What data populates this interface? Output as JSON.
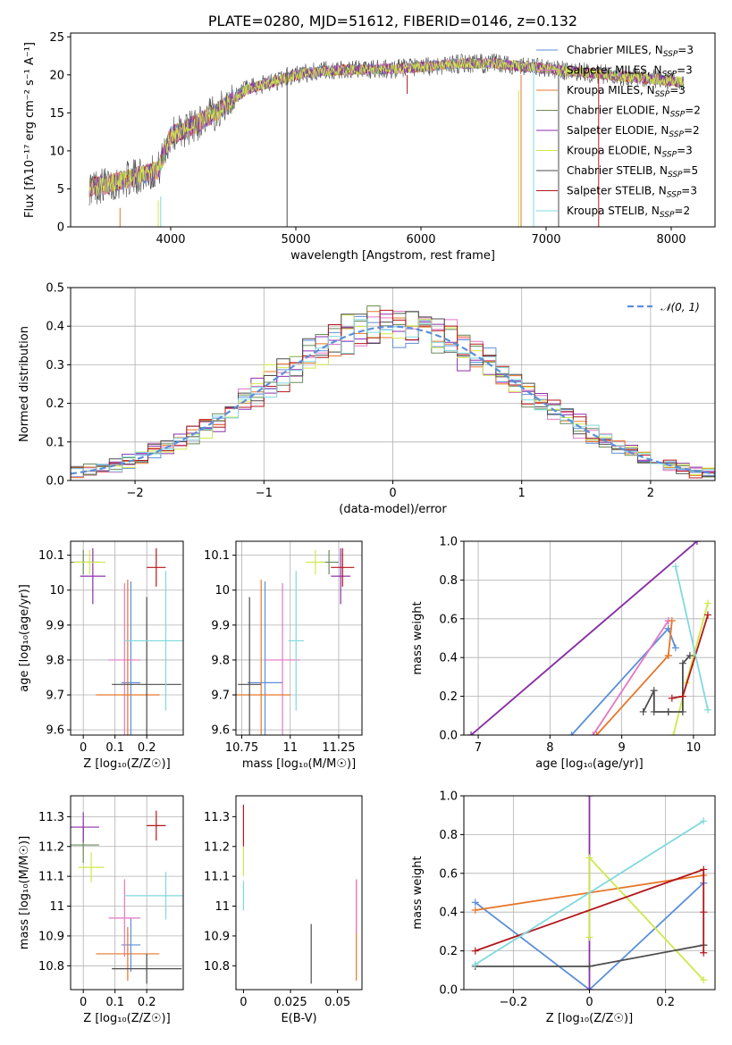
{
  "colors": {
    "chabrier_miles": "#5b8fd9",
    "salpeter_miles": "#e377c2",
    "kroupa_miles": "#e6772b",
    "chabrier_elodie": "#6a8a5a",
    "salpeter_elodie": "#8e2fae",
    "kroupa_elodie": "#cfe84a",
    "chabrier_stelib": "#4d4d4d",
    "salpeter_stelib": "#b3161c",
    "kroupa_stelib": "#7fd9dc",
    "normal": "#5b8fd9"
  },
  "chart_data": [
    {
      "id": "spectrum",
      "type": "line",
      "title": "PLATE=0280, MJD=51612, FIBERID=0146, z=0.132",
      "xlabel": "wavelength [Angstrom, rest frame]",
      "ylabel": "Flux [fλ10⁻¹⁷ erg cm⁻² s⁻¹ A⁻¹]",
      "xlim": [
        3200,
        8350
      ],
      "ylim": [
        0,
        25.5
      ],
      "xticks": [
        4000,
        5000,
        6000,
        7000,
        8000
      ],
      "yticks": [
        0,
        5,
        10,
        15,
        20,
        25
      ],
      "legend_position": "right",
      "legend": [
        {
          "label": "Chabrier MILES, N",
          "sub": "SSP",
          "suffix": "=3",
          "color": "chabrier_miles"
        },
        {
          "label": "Salpeter MILES, N",
          "sub": "SSP",
          "suffix": "=3",
          "color": "salpeter_miles"
        },
        {
          "label": "Kroupa MILES, N",
          "sub": "SSP",
          "suffix": "=3",
          "color": "kroupa_miles"
        },
        {
          "label": "Chabrier ELODIE, N",
          "sub": "SSP",
          "suffix": "=2",
          "color": "chabrier_elodie"
        },
        {
          "label": "Salpeter ELODIE, N",
          "sub": "SSP",
          "suffix": "=2",
          "color": "salpeter_elodie"
        },
        {
          "label": "Kroupa ELODIE, N",
          "sub": "SSP",
          "suffix": "=3",
          "color": "kroupa_elodie"
        },
        {
          "label": "Chabrier STELIB, N",
          "sub": "SSP",
          "suffix": "=5",
          "color": "chabrier_stelib"
        },
        {
          "label": "Salpeter STELIB, N",
          "sub": "SSP",
          "suffix": "=3",
          "color": "salpeter_stelib"
        },
        {
          "label": "Kroupa STELIB, N",
          "sub": "SSP",
          "suffix": "=2",
          "color": "kroupa_stelib"
        }
      ],
      "continuum": {
        "x": [
          3350,
          3500,
          3700,
          3900,
          4000,
          4200,
          4400,
          4600,
          4800,
          5000,
          5200,
          5500,
          5800,
          6000,
          6300,
          6600,
          7000,
          7500,
          8000,
          8100
        ],
        "y": [
          5.2,
          5.6,
          6.5,
          7.5,
          12.0,
          13.5,
          15.5,
          18.0,
          19.0,
          20.0,
          20.5,
          20.7,
          20.8,
          21.0,
          21.5,
          21.5,
          20.8,
          20.0,
          19.2,
          19.0
        ]
      },
      "spikes": [
        {
          "x": 3900,
          "ymin": 0,
          "ymax": 3.5,
          "color": "kroupa_elodie"
        },
        {
          "x": 3920,
          "ymin": 0,
          "ymax": 4.0,
          "color": "kroupa_stelib"
        },
        {
          "x": 3595,
          "ymin": 0,
          "ymax": 2.5,
          "color": "kroupa_miles"
        },
        {
          "x": 4930,
          "ymin": 0,
          "ymax": 21.0,
          "color": "chabrier_stelib"
        },
        {
          "x": 5890,
          "ymin": 17.5,
          "ymax": 20.0,
          "color": "salpeter_stelib"
        },
        {
          "x": 6780,
          "ymin": 0,
          "ymax": 18.0,
          "color": "kroupa_elodie"
        },
        {
          "x": 6800,
          "ymin": 0,
          "ymax": 20.0,
          "color": "kroupa_miles"
        },
        {
          "x": 6900,
          "ymin": 0,
          "ymax": 22.0,
          "color": "kroupa_stelib"
        },
        {
          "x": 7100,
          "ymin": 0,
          "ymax": 20.0,
          "color": "chabrier_stelib"
        },
        {
          "x": 7420,
          "ymin": 0,
          "ymax": 21.0,
          "color": "salpeter_stelib"
        }
      ]
    },
    {
      "id": "residuals",
      "type": "histogram",
      "xlabel": "(data-model)/error",
      "ylabel": "Normed distribution",
      "xlim": [
        -2.5,
        2.5
      ],
      "ylim": [
        0,
        0.5
      ],
      "xticks": [
        -2,
        -1,
        0,
        1,
        2
      ],
      "yticks": [
        0.0,
        0.1,
        0.2,
        0.3,
        0.4,
        0.5
      ],
      "grid": true,
      "legend_position": "top-right",
      "legend_label": "𝒩(0, 1)",
      "bin_width": 0.1
    },
    {
      "id": "age_vs_z",
      "type": "errorbar",
      "xlabel": "Z [log₁₀(Z/Z☉)]",
      "ylabel": "age  [log₁₀(age/yr)]",
      "xlim": [
        -0.04,
        0.315
      ],
      "ylim": [
        9.585,
        10.14
      ],
      "xticks": [
        0.0,
        0.1,
        0.2
      ],
      "yticks": [
        9.6,
        9.7,
        9.8,
        9.9,
        10.0,
        10.1
      ],
      "grid": true,
      "points": [
        {
          "x": 0.15,
          "xerr": 0.03,
          "y": 9.735,
          "yerr": 0.29,
          "color": "chabrier_miles"
        },
        {
          "x": 0.13,
          "xerr": 0.05,
          "y": 9.8,
          "yerr": 0.22,
          "color": "salpeter_miles"
        },
        {
          "x": 0.14,
          "xerr": 0.1,
          "y": 9.7,
          "yerr": 0.33,
          "color": "kroupa_miles"
        },
        {
          "x": 0.0,
          "xerr": 0.05,
          "y": 10.08,
          "yerr": 0.035,
          "color": "chabrier_elodie"
        },
        {
          "x": 0.03,
          "xerr": 0.04,
          "y": 10.04,
          "yerr": 0.08,
          "color": "salpeter_elodie"
        },
        {
          "x": 0.02,
          "xerr": 0.05,
          "y": 10.08,
          "yerr": 0.035,
          "color": "kroupa_elodie"
        },
        {
          "x": 0.2,
          "xerr": 0.11,
          "y": 9.73,
          "yerr": 0.25,
          "color": "chabrier_stelib"
        },
        {
          "x": 0.23,
          "xerr": 0.03,
          "y": 10.065,
          "yerr": 0.055,
          "color": "salpeter_stelib"
        },
        {
          "x": 0.26,
          "xerr": 0.13,
          "y": 9.855,
          "yerr": 0.2,
          "color": "kroupa_stelib"
        }
      ]
    },
    {
      "id": "age_vs_mass",
      "type": "errorbar",
      "xlabel": "mass [log₁₀(M/M☉)]",
      "ylabel": "",
      "xlim": [
        10.72,
        11.37
      ],
      "ylim": [
        9.585,
        10.14
      ],
      "xticks": [
        10.75,
        11.0,
        11.25
      ],
      "yticks": [
        9.6,
        9.7,
        9.8,
        9.9,
        10.0,
        10.1
      ],
      "grid": true,
      "points": [
        {
          "x": 10.87,
          "xerr": 0.09,
          "y": 9.735,
          "yerr": 0.29,
          "color": "chabrier_miles"
        },
        {
          "x": 10.96,
          "xerr": 0.09,
          "y": 9.8,
          "yerr": 0.22,
          "color": "salpeter_miles"
        },
        {
          "x": 10.85,
          "xerr": 0.15,
          "y": 9.7,
          "yerr": 0.33,
          "color": "kroupa_miles"
        },
        {
          "x": 11.2,
          "xerr": 0.05,
          "y": 10.08,
          "yerr": 0.035,
          "color": "chabrier_elodie"
        },
        {
          "x": 11.26,
          "xerr": 0.05,
          "y": 10.04,
          "yerr": 0.08,
          "color": "salpeter_elodie"
        },
        {
          "x": 11.13,
          "xerr": 0.05,
          "y": 10.08,
          "yerr": 0.035,
          "color": "kroupa_elodie"
        },
        {
          "x": 10.79,
          "xerr": 0.06,
          "y": 9.73,
          "yerr": 0.25,
          "color": "chabrier_stelib"
        },
        {
          "x": 11.27,
          "xerr": 0.06,
          "y": 10.065,
          "yerr": 0.055,
          "color": "salpeter_stelib"
        },
        {
          "x": 11.03,
          "xerr": 0.04,
          "y": 9.855,
          "yerr": 0.2,
          "color": "kroupa_stelib"
        }
      ]
    },
    {
      "id": "mass_weight_vs_age",
      "type": "line",
      "xlabel": "age  [log₁₀(age/yr)]",
      "ylabel": "mass weight",
      "xlim": [
        6.8,
        10.3
      ],
      "ylim": [
        0,
        1
      ],
      "xticks": [
        7,
        8,
        9,
        10
      ],
      "yticks": [
        0.0,
        0.2,
        0.4,
        0.6,
        0.8,
        1.0
      ],
      "grid": true,
      "series": [
        {
          "color": "chabrier_elodie",
          "x": [
            6.9,
            10.05
          ],
          "y": [
            0.0,
            1.0
          ]
        },
        {
          "color": "salpeter_elodie",
          "x": [
            6.9,
            10.05
          ],
          "y": [
            0.0,
            1.0
          ]
        },
        {
          "color": "chabrier_miles",
          "x": [
            8.3,
            9.65,
            9.65,
            9.75
          ],
          "y": [
            0.0,
            0.55,
            0.55,
            0.45
          ]
        },
        {
          "color": "salpeter_miles",
          "x": [
            8.6,
            9.65,
            9.65
          ],
          "y": [
            0.0,
            0.59,
            0.59
          ]
        },
        {
          "color": "kroupa_miles",
          "x": [
            8.65,
            9.65,
            9.65,
            9.7
          ],
          "y": [
            0.0,
            0.41,
            0.41,
            0.59
          ]
        },
        {
          "color": "kroupa_elodie",
          "x": [
            9.72,
            9.9,
            10.2
          ],
          "y": [
            0.0,
            0.27,
            0.68
          ]
        },
        {
          "color": "chabrier_stelib",
          "x": [
            9.3,
            9.45,
            9.45,
            9.65,
            9.65,
            9.85,
            9.85,
            9.95
          ],
          "y": [
            0.12,
            0.23,
            0.12,
            0.12,
            0.12,
            0.12,
            0.37,
            0.41
          ]
        },
        {
          "color": "salpeter_stelib",
          "x": [
            9.7,
            9.85,
            10.2
          ],
          "y": [
            0.19,
            0.2,
            0.62
          ]
        },
        {
          "color": "kroupa_stelib",
          "x": [
            9.75,
            10.2
          ],
          "y": [
            0.87,
            0.13
          ]
        }
      ]
    },
    {
      "id": "mass_vs_z",
      "type": "errorbar",
      "xlabel": "Z [log₁₀(Z/Z☉)]",
      "ylabel": "mass [log₁₀(M/M☉)]",
      "xlim": [
        -0.04,
        0.315
      ],
      "ylim": [
        10.72,
        11.37
      ],
      "xticks": [
        0.0,
        0.1,
        0.2
      ],
      "yticks": [
        10.8,
        10.9,
        11.0,
        11.1,
        11.2,
        11.3
      ],
      "grid": true,
      "points": [
        {
          "x": 0.15,
          "xerr": 0.03,
          "y": 10.87,
          "yerr": 0.09,
          "color": "chabrier_miles"
        },
        {
          "x": 0.13,
          "xerr": 0.05,
          "y": 10.96,
          "yerr": 0.13,
          "color": "salpeter_miles"
        },
        {
          "x": 0.14,
          "xerr": 0.1,
          "y": 10.84,
          "yerr": 0.09,
          "color": "kroupa_miles"
        },
        {
          "x": 0.0,
          "xerr": 0.05,
          "y": 11.205,
          "yerr": 0.06,
          "color": "chabrier_elodie"
        },
        {
          "x": 0.0,
          "xerr": 0.05,
          "y": 11.265,
          "yerr": 0.05,
          "color": "salpeter_elodie"
        },
        {
          "x": 0.025,
          "xerr": 0.04,
          "y": 11.13,
          "yerr": 0.05,
          "color": "kroupa_elodie"
        },
        {
          "x": 0.2,
          "xerr": 0.11,
          "y": 10.79,
          "yerr": 0.05,
          "color": "chabrier_stelib"
        },
        {
          "x": 0.23,
          "xerr": 0.03,
          "y": 11.27,
          "yerr": 0.05,
          "color": "salpeter_stelib"
        },
        {
          "x": 0.26,
          "xerr": 0.13,
          "y": 11.035,
          "yerr": 0.08,
          "color": "kroupa_stelib"
        }
      ]
    },
    {
      "id": "mass_vs_ebv",
      "type": "errorbar",
      "xlabel": "E(B-V)",
      "ylabel": "",
      "xlim": [
        -0.004,
        0.063
      ],
      "ylim": [
        10.72,
        11.37
      ],
      "xticks": [
        0.0,
        0.025,
        0.05
      ],
      "yticks": [
        10.8,
        10.9,
        11.0,
        11.1,
        11.2,
        11.3
      ],
      "grid": false,
      "points": [
        {
          "x": 0.0,
          "y": 11.27,
          "yerr": 0.07,
          "color": "salpeter_stelib"
        },
        {
          "x": 0.0,
          "y": 11.15,
          "yerr": 0.05,
          "color": "kroupa_elodie"
        },
        {
          "x": 0.0,
          "y": 11.035,
          "yerr": 0.05,
          "color": "kroupa_stelib"
        },
        {
          "x": 0.036,
          "y": 10.84,
          "yerr": 0.1,
          "color": "chabrier_stelib"
        },
        {
          "x": 0.06,
          "y": 10.92,
          "yerr": 0.17,
          "color": "kroupa_miles"
        },
        {
          "x": 0.06,
          "y": 11.0,
          "yerr": 0.09,
          "color": "salpeter_miles"
        }
      ]
    },
    {
      "id": "mass_weight_vs_z",
      "type": "line",
      "xlabel": "Z [log₁₀(Z/Z☉)]",
      "ylabel": "mass weight",
      "xlim": [
        -0.33,
        0.33
      ],
      "ylim": [
        0,
        1
      ],
      "xticks": [
        -0.2,
        0.0,
        0.2
      ],
      "yticks": [
        0.0,
        0.2,
        0.4,
        0.6,
        0.8,
        1.0
      ],
      "grid": true,
      "series": [
        {
          "color": "chabrier_miles",
          "x": [
            -0.3,
            0.0,
            0.3,
            0.3
          ],
          "y": [
            0.45,
            0.0,
            0.55,
            0.55
          ]
        },
        {
          "color": "kroupa_miles",
          "x": [
            -0.3,
            0.3
          ],
          "y": [
            0.41,
            0.59
          ]
        },
        {
          "color": "salpeter_elodie",
          "x": [
            0.0,
            0.0
          ],
          "y": [
            0.0,
            1.0
          ]
        },
        {
          "color": "kroupa_elodie",
          "x": [
            0.0,
            0.0,
            0.3
          ],
          "y": [
            0.27,
            0.68,
            0.05
          ]
        },
        {
          "color": "chabrier_stelib",
          "x": [
            -0.3,
            0.0,
            0.3,
            0.3
          ],
          "y": [
            0.12,
            0.12,
            0.23,
            0.23
          ]
        },
        {
          "color": "salpeter_stelib",
          "x": [
            -0.3,
            0.3,
            0.3,
            0.3
          ],
          "y": [
            0.2,
            0.62,
            0.4,
            0.19
          ]
        },
        {
          "color": "kroupa_stelib",
          "x": [
            -0.3,
            0.3
          ],
          "y": [
            0.13,
            0.87
          ]
        }
      ]
    }
  ]
}
